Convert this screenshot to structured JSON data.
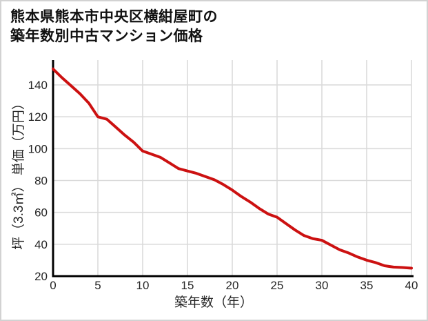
{
  "title": {
    "line1": "熊本県熊本市中央区横紺屋町の",
    "line2": "築年数別中古マンション価格"
  },
  "colors": {
    "line": "#cc1111",
    "grid": "#d9d9d9",
    "axis": "#000000",
    "text": "#262626",
    "frame_border": "#d2d2d2",
    "background": "#ffffff"
  },
  "chart_data": {
    "type": "line",
    "title": "熊本県熊本市中央区横紺屋町の築年数別中古マンション価格",
    "xlabel": "築年数（年）",
    "ylabel": "坪（3.3㎡） 単価（万円）",
    "x": [
      0,
      1,
      2,
      3,
      4,
      5,
      6,
      7,
      8,
      9,
      10,
      11,
      12,
      13,
      14,
      15,
      16,
      17,
      18,
      19,
      20,
      21,
      22,
      23,
      24,
      25,
      26,
      27,
      28,
      29,
      30,
      31,
      32,
      33,
      34,
      35,
      36,
      37,
      38,
      39,
      40
    ],
    "values": [
      150,
      144.5,
      139.5,
      134.5,
      128.5,
      120,
      118.5,
      113.5,
      108.5,
      104,
      98.5,
      96.5,
      94.5,
      91,
      87.5,
      86,
      84.5,
      82.5,
      80.5,
      77.5,
      74,
      70,
      66.5,
      62.5,
      59,
      57,
      53,
      49,
      45.5,
      43.5,
      42.5,
      39.5,
      36.5,
      34.5,
      32,
      30,
      28.5,
      26.5,
      25.7,
      25.4,
      25
    ],
    "x_ticks": [
      0,
      5,
      10,
      15,
      20,
      25,
      30,
      35,
      40
    ],
    "y_ticks": [
      20,
      40,
      60,
      80,
      100,
      120,
      140
    ],
    "xlim": [
      0,
      40
    ],
    "ylim": [
      20,
      155.6
    ],
    "grid": true,
    "legend": false
  }
}
